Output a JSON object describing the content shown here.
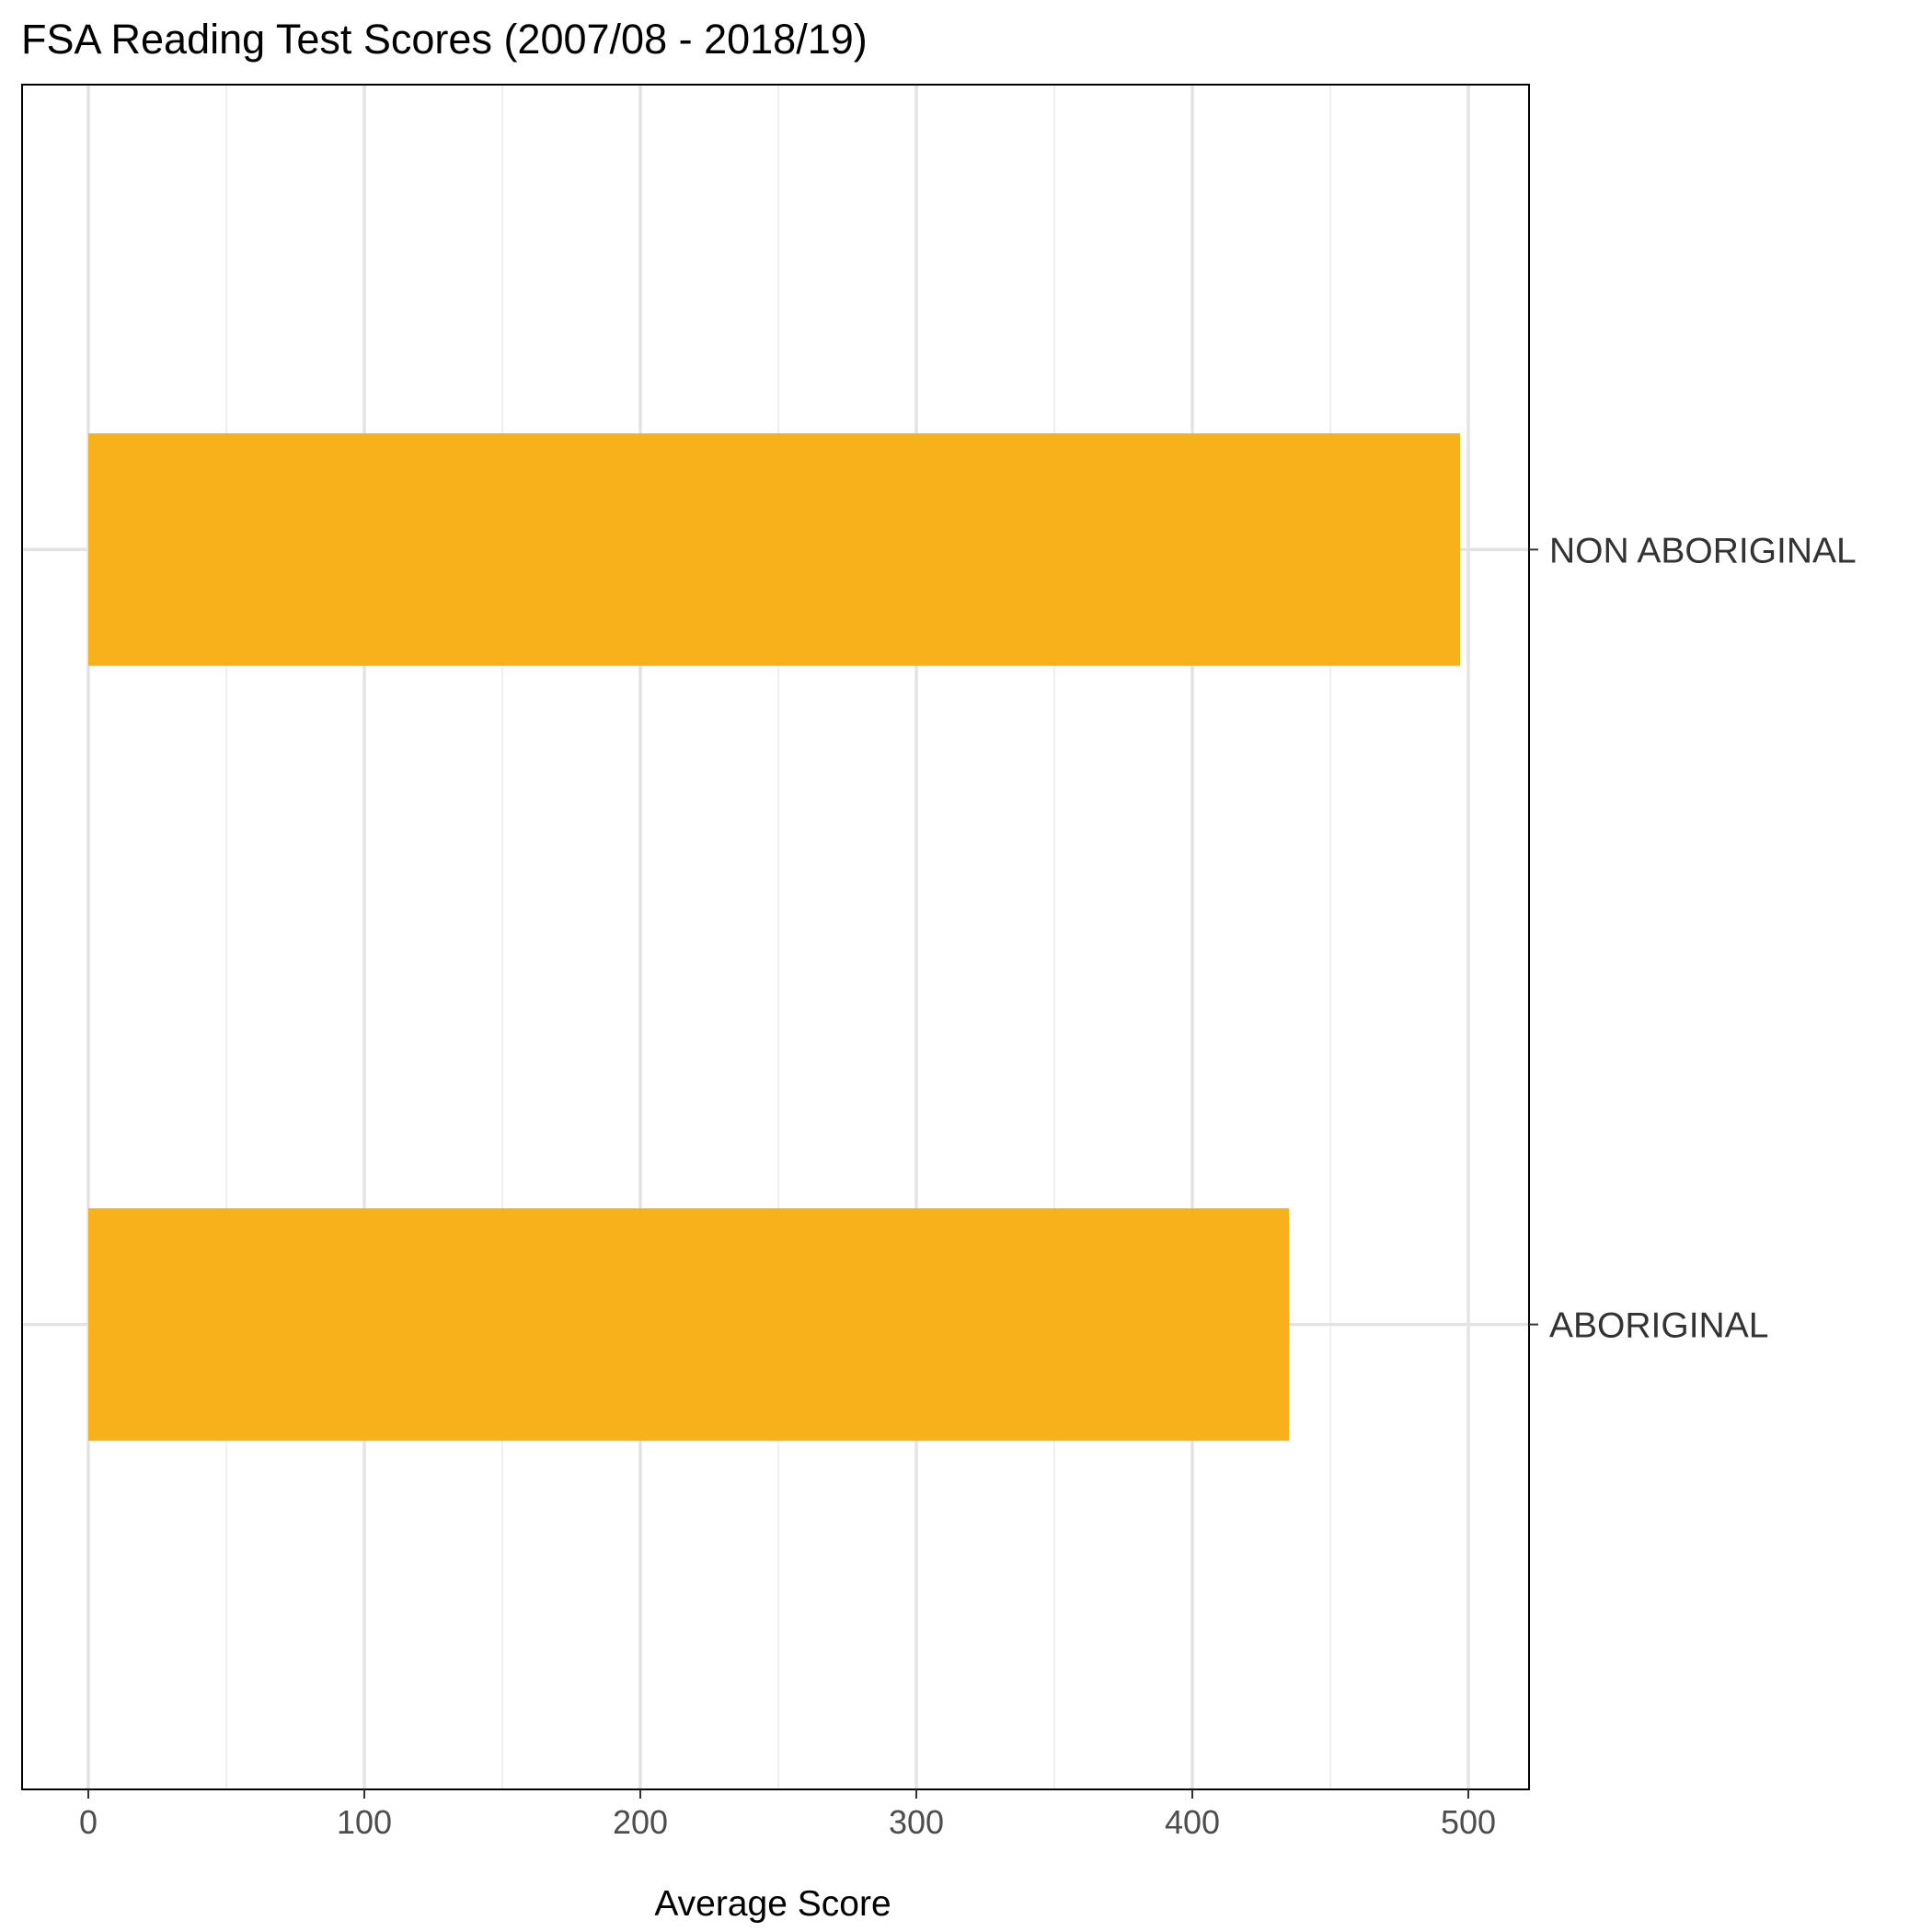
{
  "chart_data": {
    "type": "bar",
    "orientation": "horizontal",
    "title": "FSA Reading Test Scores (2007/08 - 2018/19)",
    "xlabel": "Average Score",
    "ylabel": "",
    "categories": [
      "ABORIGINAL",
      "NON ABORIGINAL"
    ],
    "values": [
      435,
      497
    ],
    "xlim": [
      -24,
      522
    ],
    "x_ticks": [
      0,
      100,
      200,
      300,
      400,
      500
    ],
    "x_minor_ticks": [
      50,
      150,
      250,
      350,
      450
    ],
    "category_axis_side": "right",
    "grid": true,
    "bar_color": "#F8B01B",
    "colors": {
      "panel_border": "#000000",
      "major_grid": "#e3e3e3",
      "minor_grid": "#efefef"
    }
  }
}
